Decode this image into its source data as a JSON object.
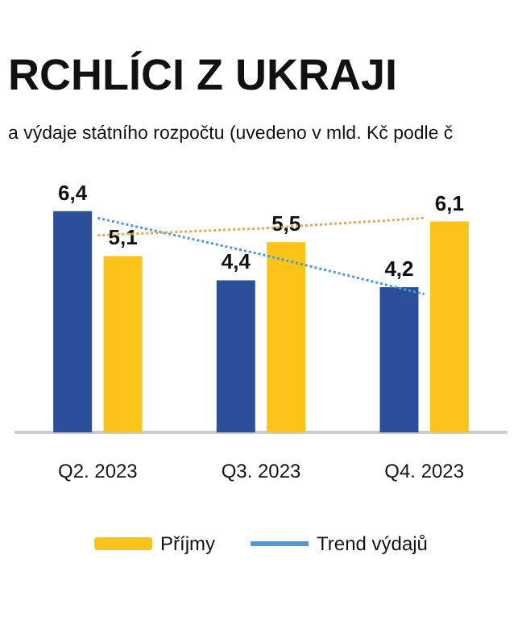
{
  "chart_data": {
    "type": "bar",
    "title": "RCHLÍCI Z UKRAJI",
    "subtitle": "a výdaje státního rozpočtu (uvedeno v mld. Kč podle č",
    "categories": [
      "Q2. 2023",
      "Q3. 2023",
      "Q4. 2023"
    ],
    "series": [
      {
        "color": "#2b4f9b",
        "values": [
          6.4,
          4.4,
          4.2
        ],
        "value_labels": [
          "6,4",
          "4,4",
          "4,2"
        ]
      },
      {
        "name": "Příjmy",
        "color": "#fcc318",
        "values": [
          5.1,
          5.5,
          6.1
        ],
        "value_labels": [
          "5,1",
          "5,5",
          "6,1"
        ]
      },
      {
        "name": "Trend výdajů",
        "type": "line",
        "color": "#4a9bd6",
        "line_style": "dotted",
        "marker": "none",
        "values": [
          6.2,
          5.15,
          4.0
        ]
      },
      {
        "type": "line",
        "color": "#f5a53c",
        "line_style": "dotted",
        "marker": "none",
        "values": [
          5.7,
          5.9,
          6.2
        ]
      }
    ],
    "tick_labels": "x",
    "grid": false,
    "legend": "bottom"
  }
}
